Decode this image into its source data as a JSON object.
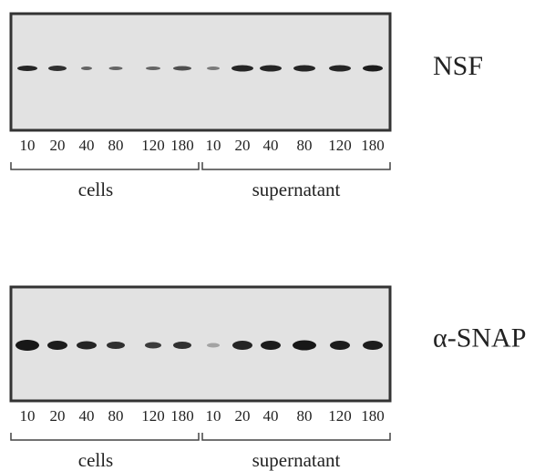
{
  "panels": [
    {
      "protein": "NSF",
      "lanes": [
        "10",
        "20",
        "40",
        "80",
        "120",
        "180",
        "10",
        "20",
        "40",
        "80",
        "120",
        "180"
      ],
      "groups": [
        "cells",
        "supernatant"
      ]
    },
    {
      "protein": "α-SNAP",
      "lanes": [
        "10",
        "20",
        "40",
        "80",
        "120",
        "180",
        "10",
        "20",
        "40",
        "80",
        "120",
        "180"
      ],
      "groups": [
        "cells",
        "supernatant"
      ]
    }
  ]
}
